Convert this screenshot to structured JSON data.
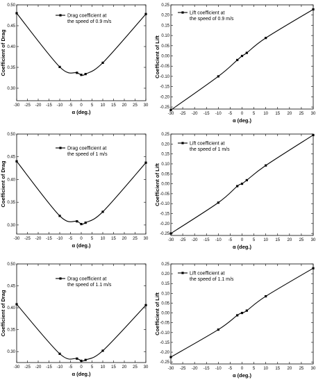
{
  "chart_data": [
    {
      "type": "line",
      "panel": "drag-0.9",
      "xlabel": "α (deg.)",
      "ylabel": "Coefficient of Drag",
      "xlim": [
        -30,
        30
      ],
      "ylim": [
        0.27,
        0.5
      ],
      "xticks": [
        -30,
        -25,
        -20,
        -15,
        -10,
        -5,
        0,
        5,
        10,
        15,
        20,
        25,
        30
      ],
      "yticks": [
        0.3,
        0.35,
        0.4,
        0.45,
        0.5
      ],
      "ytick_labels": [
        "0.30",
        "0.35",
        "0.40",
        "0.45",
        "0.50"
      ],
      "legend": "top-right",
      "series": [
        {
          "name": "Drag coefficient at the speed of 0.9 m/s",
          "x": [
            -30,
            -10,
            -2,
            0,
            2,
            10,
            30
          ],
          "y": [
            0.48,
            0.351,
            0.337,
            0.332,
            0.334,
            0.361,
            0.478
          ]
        }
      ]
    },
    {
      "type": "line",
      "panel": "lift-0.9",
      "xlabel": "α (deg.)",
      "ylabel": "Coefficient of Lift",
      "xlim": [
        -30,
        30
      ],
      "ylim": [
        -0.26,
        0.25
      ],
      "xticks": [
        -30,
        -25,
        -20,
        -15,
        -10,
        -5,
        0,
        5,
        10,
        15,
        20,
        25,
        30
      ],
      "yticks": [
        -0.25,
        -0.2,
        -0.15,
        -0.1,
        -0.05,
        0.0,
        0.05,
        0.1,
        0.15,
        0.2,
        0.25
      ],
      "ytick_labels": [
        "-0.25",
        "-0.20",
        "-0.15",
        "-0.10",
        "-0.05",
        "0.00",
        "0.05",
        "0.10",
        "0.15",
        "0.20",
        "0.25"
      ],
      "legend": "top-left",
      "series": [
        {
          "name": "Lift coefficient at the speed of 0.9 m/s",
          "x": [
            -30,
            -10,
            -2,
            0,
            2,
            10,
            30
          ],
          "y": [
            -0.265,
            -0.1,
            -0.02,
            0.0,
            0.015,
            0.088,
            0.228
          ]
        }
      ]
    },
    {
      "type": "line",
      "panel": "drag-1",
      "xlabel": "α (deg.)",
      "ylabel": "Coefficient of Drag",
      "xlim": [
        -30,
        30
      ],
      "ylim": [
        0.28,
        0.5
      ],
      "xticks": [
        -30,
        -25,
        -20,
        -15,
        -10,
        -5,
        0,
        5,
        10,
        15,
        20,
        25,
        30
      ],
      "yticks": [
        0.3,
        0.35,
        0.4,
        0.45,
        0.5
      ],
      "ytick_labels": [
        "0.30",
        "0.35",
        "0.40",
        "0.45",
        "0.50"
      ],
      "legend": "top-right",
      "series": [
        {
          "name": "Drag coefficient at the speed of 1 m/s",
          "x": [
            -30,
            -10,
            -2,
            0,
            2,
            10,
            30
          ],
          "y": [
            0.44,
            0.32,
            0.308,
            0.302,
            0.305,
            0.329,
            0.437
          ]
        }
      ]
    },
    {
      "type": "line",
      "panel": "lift-1",
      "xlabel": "α (deg.)",
      "ylabel": "Coefficient of Lift",
      "xlim": [
        -30,
        30
      ],
      "ylim": [
        -0.26,
        0.25
      ],
      "xticks": [
        -30,
        -25,
        -20,
        -15,
        -10,
        -5,
        0,
        5,
        10,
        15,
        20,
        25,
        30
      ],
      "yticks": [
        -0.25,
        -0.2,
        -0.15,
        -0.1,
        -0.05,
        0.0,
        0.05,
        0.1,
        0.15,
        0.2,
        0.25
      ],
      "ytick_labels": [
        "-0.25",
        "-0.20",
        "-0.15",
        "-0.10",
        "-0.05",
        "0.00",
        "0.05",
        "0.10",
        "0.15",
        "0.20",
        "0.25"
      ],
      "legend": "top-left",
      "series": [
        {
          "name": "Lift coefficient at the speed of 1 m/s",
          "x": [
            -30,
            -10,
            -2,
            0,
            2,
            10,
            30
          ],
          "y": [
            -0.25,
            -0.095,
            -0.012,
            0.0,
            0.018,
            0.092,
            0.245
          ]
        }
      ]
    },
    {
      "type": "line",
      "panel": "drag-1.1",
      "xlabel": "α (deg.)",
      "ylabel": "Coefficient of Drag",
      "xlim": [
        -30,
        30
      ],
      "ylim": [
        0.275,
        0.5
      ],
      "xticks": [
        -30,
        -25,
        -20,
        -15,
        -10,
        -5,
        0,
        5,
        10,
        15,
        20,
        25,
        30
      ],
      "yticks": [
        0.3,
        0.35,
        0.4,
        0.45,
        0.5
      ],
      "ytick_labels": [
        "0.30",
        "0.35",
        "0.40",
        "0.45",
        "0.50"
      ],
      "legend": "top-right",
      "series": [
        {
          "name": "Drag coefficient at the speed of 1.1 m/s",
          "x": [
            -30,
            -10,
            -2,
            0,
            2,
            10,
            30
          ],
          "y": [
            0.408,
            0.295,
            0.284,
            0.279,
            0.281,
            0.302,
            0.406
          ]
        }
      ]
    },
    {
      "type": "line",
      "panel": "lift-1.1",
      "xlabel": "α (deg.)",
      "ylabel": "Coefficient of Lift",
      "xlim": [
        -30,
        30
      ],
      "ylim": [
        -0.26,
        0.25
      ],
      "xticks": [
        -30,
        -25,
        -20,
        -15,
        -10,
        -5,
        0,
        5,
        10,
        15,
        20,
        25,
        30
      ],
      "yticks": [
        -0.25,
        -0.2,
        -0.15,
        -0.1,
        -0.05,
        0.0,
        0.05,
        0.1,
        0.15,
        0.2,
        0.25
      ],
      "ytick_labels": [
        "-0.25",
        "-0.20",
        "-0.15",
        "-0.10",
        "-0.05",
        "0.00",
        "0.05",
        "0.10",
        "0.15",
        "0.20",
        "0.25"
      ],
      "legend": "top-left",
      "series": [
        {
          "name": "Lift coefficient at the speed of 1.1 m/s",
          "x": [
            -30,
            -10,
            -2,
            0,
            2,
            10,
            30
          ],
          "y": [
            -0.225,
            -0.085,
            -0.012,
            0.0,
            0.012,
            0.085,
            0.228
          ]
        }
      ]
    }
  ],
  "legend_lines": [
    [
      "Drag coefficient at",
      "the speed of 0.9 m/s"
    ],
    [
      "Lift coefficient at",
      "the speed of 0.9 m/s"
    ],
    [
      "Drag coefficient at",
      "the speed of 1 m/s"
    ],
    [
      "Lift coefficient at",
      "the speed of 1 m/s"
    ],
    [
      "Drag coefficient at",
      "the speed of 1.1 m/s"
    ],
    [
      "Lift coefficient at",
      "the speed of 1.1 m/s"
    ]
  ]
}
